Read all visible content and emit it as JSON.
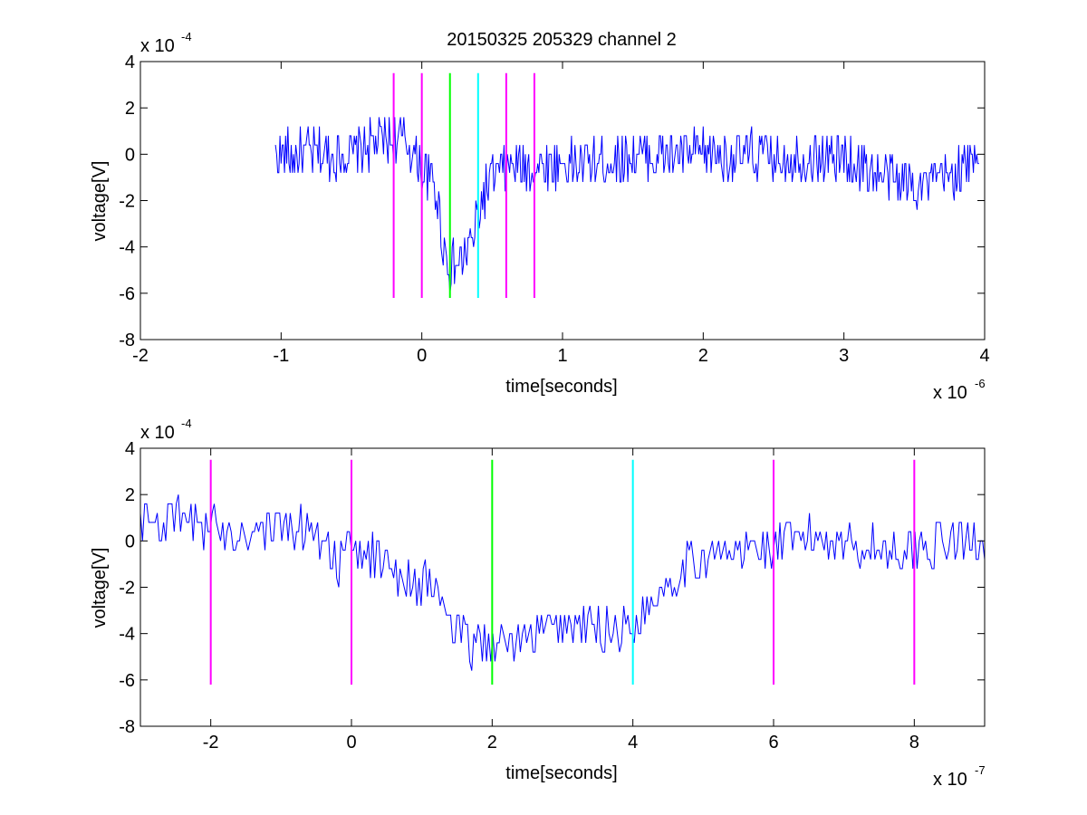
{
  "chart_data": [
    {
      "type": "line",
      "title": "20150325 205329 channel 2",
      "xlabel": "time[seconds]",
      "ylabel": "voltage[V]",
      "x_exponent_label": "x 10",
      "x_exponent": "-6",
      "y_exponent_label": "x 10",
      "y_exponent": "-4",
      "xlim": [
        -2,
        4
      ],
      "ylim": [
        -8,
        4
      ],
      "x_ticks": [
        "-2",
        "-1",
        "0",
        "1",
        "2",
        "3",
        "4"
      ],
      "y_ticks": [
        "-8",
        "-6",
        "-4",
        "-2",
        "0",
        "2",
        "4"
      ],
      "grid": false,
      "series": [
        {
          "color": "#0000ff",
          "x_range": [
            -1.04,
            3.96
          ],
          "shape": [
            [
              -1.04,
              0.0
            ],
            [
              -0.5,
              0.0
            ],
            [
              -0.3,
              0.6
            ],
            [
              -0.2,
              0.7
            ],
            [
              -0.1,
              0.5
            ],
            [
              0.0,
              -0.6
            ],
            [
              0.1,
              -1.5
            ],
            [
              0.15,
              -3.8
            ],
            [
              0.2,
              -4.9
            ],
            [
              0.25,
              -4.8
            ],
            [
              0.3,
              -4.4
            ],
            [
              0.35,
              -3.9
            ],
            [
              0.4,
              -2.6
            ],
            [
              0.45,
              -1.6
            ],
            [
              0.5,
              -1.0
            ],
            [
              0.6,
              -0.6
            ],
            [
              0.8,
              -0.5
            ],
            [
              1.2,
              -0.4
            ],
            [
              1.5,
              -0.1
            ],
            [
              2.0,
              0.0
            ],
            [
              3.0,
              -0.2
            ],
            [
              3.3,
              -1.0
            ],
            [
              3.6,
              -1.3
            ],
            [
              3.9,
              -0.5
            ],
            [
              3.96,
              0.4
            ]
          ],
          "noise": 1.1,
          "step": 0.008
        }
      ],
      "vlines": [
        {
          "x": -0.2,
          "y": [
            -6.2,
            3.5
          ],
          "color": "#ff00ff"
        },
        {
          "x": 0.0,
          "y": [
            -6.2,
            3.5
          ],
          "color": "#ff00ff"
        },
        {
          "x": 0.2,
          "y": [
            -6.2,
            3.5
          ],
          "color": "#00ff00"
        },
        {
          "x": 0.4,
          "y": [
            -6.2,
            3.5
          ],
          "color": "#00ffff"
        },
        {
          "x": 0.6,
          "y": [
            -6.2,
            3.5
          ],
          "color": "#ff00ff"
        },
        {
          "x": 0.8,
          "y": [
            -6.2,
            3.5
          ],
          "color": "#ff00ff"
        }
      ]
    },
    {
      "type": "line",
      "title": "",
      "xlabel": "time[seconds]",
      "ylabel": "voltage[V]",
      "x_exponent_label": "x 10",
      "x_exponent": "-7",
      "y_exponent_label": "x 10",
      "y_exponent": "-4",
      "xlim": [
        -3,
        9
      ],
      "ylim": [
        -8,
        4
      ],
      "x_ticks": [
        "-2",
        "0",
        "2",
        "4",
        "6",
        "8"
      ],
      "x_tick_values": [
        -2,
        0,
        2,
        4,
        6,
        8
      ],
      "y_ticks": [
        "-8",
        "-6",
        "-4",
        "-2",
        "0",
        "2",
        "4"
      ],
      "grid": false,
      "series": [
        {
          "color": "#0000ff",
          "x_range": [
            -3,
            9
          ],
          "shape": [
            [
              -3.0,
              0.8
            ],
            [
              -2.5,
              0.9
            ],
            [
              -2.0,
              0.6
            ],
            [
              -1.5,
              0.4
            ],
            [
              -1.0,
              0.5
            ],
            [
              -0.5,
              0.6
            ],
            [
              -0.2,
              -1.0
            ],
            [
              0.0,
              -0.4
            ],
            [
              0.4,
              -0.8
            ],
            [
              0.8,
              -1.6
            ],
            [
              1.2,
              -2.0
            ],
            [
              1.4,
              -3.6
            ],
            [
              1.7,
              -4.6
            ],
            [
              2.0,
              -4.4
            ],
            [
              2.5,
              -4.3
            ],
            [
              3.0,
              -3.6
            ],
            [
              3.5,
              -3.8
            ],
            [
              4.0,
              -3.8
            ],
            [
              4.3,
              -2.4
            ],
            [
              4.6,
              -1.4
            ],
            [
              5.0,
              -0.6
            ],
            [
              5.5,
              -0.5
            ],
            [
              6.0,
              -0.2
            ],
            [
              6.5,
              0.2
            ],
            [
              7.0,
              0.0
            ],
            [
              7.5,
              -0.3
            ],
            [
              8.0,
              -0.4
            ],
            [
              8.5,
              0.0
            ],
            [
              9.0,
              0.0
            ]
          ],
          "noise": 1.0,
          "step": 0.03
        }
      ],
      "vlines": [
        {
          "x": -2,
          "y": [
            -6.2,
            3.5
          ],
          "color": "#ff00ff"
        },
        {
          "x": 0,
          "y": [
            -6.2,
            3.5
          ],
          "color": "#ff00ff"
        },
        {
          "x": 2,
          "y": [
            -6.2,
            3.5
          ],
          "color": "#00ff00"
        },
        {
          "x": 4,
          "y": [
            -6.2,
            3.5
          ],
          "color": "#00ffff"
        },
        {
          "x": 6,
          "y": [
            -6.2,
            3.5
          ],
          "color": "#ff00ff"
        },
        {
          "x": 8,
          "y": [
            -6.2,
            3.5
          ],
          "color": "#ff00ff"
        }
      ]
    }
  ]
}
